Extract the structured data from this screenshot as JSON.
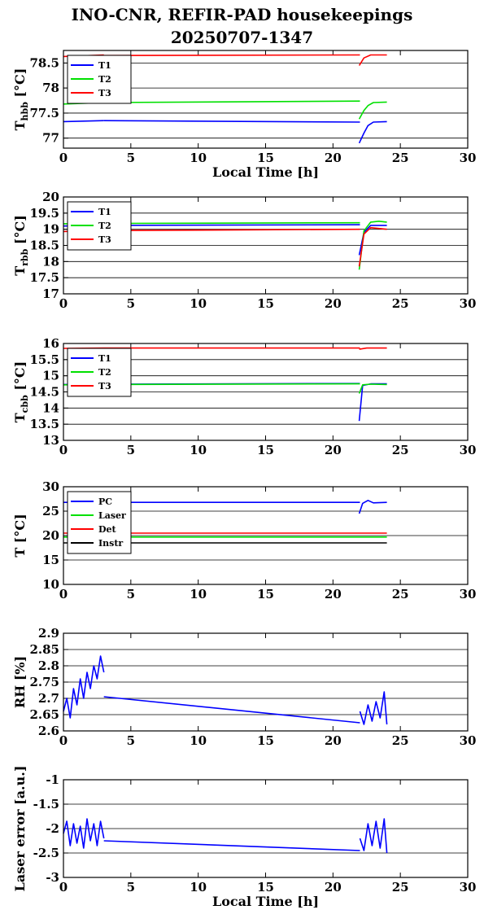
{
  "header": {
    "title_line1": "INO-CNR, REFIR-PAD housekeepings",
    "title_line2": "20250707-1347"
  },
  "colors": {
    "blue": "#0000ff",
    "green": "#00e000",
    "red": "#ff0000",
    "black": "#000000"
  },
  "chart_data": [
    {
      "type": "line",
      "ylabel_main": "T",
      "ylabel_sub": "hbb",
      "ylabel_unit": " [°C]",
      "xlabel": "Local Time [h]",
      "xlim": [
        0,
        30
      ],
      "ylim": [
        76.8,
        78.75
      ],
      "xticks": [
        "0",
        "5",
        "10",
        "15",
        "20",
        "25",
        "30"
      ],
      "yticks": [
        {
          "v": 77,
          "t": "77"
        },
        {
          "v": 77.5,
          "t": "77.5"
        },
        {
          "v": 78,
          "t": "78"
        },
        {
          "v": 78.5,
          "t": "78.5"
        }
      ],
      "grid": true,
      "legend_position": "top-left",
      "series": [
        {
          "name": "T1",
          "color": "#0000ff",
          "segments": [
            [
              [
                0,
                77.33
              ],
              [
                3,
                77.35
              ]
            ],
            [
              [
                3,
                77.35
              ],
              [
                22,
                77.32
              ]
            ],
            [
              [
                21.95,
                76.9
              ],
              [
                22.3,
                77.1
              ],
              [
                22.6,
                77.25
              ],
              [
                23,
                77.32
              ],
              [
                24,
                77.33
              ]
            ]
          ]
        },
        {
          "name": "T2",
          "color": "#00e000",
          "segments": [
            [
              [
                0,
                77.68
              ],
              [
                3,
                77.71
              ]
            ],
            [
              [
                3,
                77.71
              ],
              [
                22,
                77.74
              ]
            ],
            [
              [
                21.95,
                77.38
              ],
              [
                22.3,
                77.55
              ],
              [
                22.6,
                77.65
              ],
              [
                23,
                77.71
              ],
              [
                24,
                77.72
              ]
            ]
          ]
        },
        {
          "name": "T3",
          "color": "#ff0000",
          "segments": [
            [
              [
                0,
                78.63
              ],
              [
                3,
                78.66
              ]
            ],
            [
              [
                3,
                78.65
              ],
              [
                22,
                78.66
              ]
            ],
            [
              [
                21.95,
                78.45
              ],
              [
                22.3,
                78.6
              ],
              [
                22.8,
                78.66
              ],
              [
                24,
                78.66
              ]
            ]
          ]
        }
      ]
    },
    {
      "type": "line",
      "ylabel_main": "T",
      "ylabel_sub": "rbb",
      "ylabel_unit": " [°C]",
      "xlabel": "",
      "xlim": [
        0,
        30
      ],
      "ylim": [
        17,
        20
      ],
      "xticks": [
        "0",
        "5",
        "10",
        "15",
        "20",
        "25",
        "30"
      ],
      "yticks": [
        {
          "v": 17,
          "t": "17"
        },
        {
          "v": 17.5,
          "t": "17.5"
        },
        {
          "v": 18,
          "t": "18"
        },
        {
          "v": 18.5,
          "t": "18.5"
        },
        {
          "v": 19,
          "t": "19"
        },
        {
          "v": 19.5,
          "t": "19.5"
        },
        {
          "v": 20,
          "t": "20"
        }
      ],
      "grid": true,
      "legend_position": "top-left",
      "series": [
        {
          "name": "T1",
          "color": "#0000ff",
          "segments": [
            [
              [
                0,
                19.1
              ],
              [
                3,
                19.12
              ],
              [
                22,
                19.14
              ]
            ],
            [
              [
                21.95,
                18.2
              ],
              [
                22.3,
                18.9
              ],
              [
                22.8,
                19.12
              ],
              [
                24,
                19.12
              ]
            ]
          ]
        },
        {
          "name": "T2",
          "color": "#00e000",
          "segments": [
            [
              [
                0,
                19.17
              ],
              [
                3,
                19.18
              ],
              [
                22,
                19.2
              ]
            ],
            [
              [
                21.95,
                17.75
              ],
              [
                22.3,
                18.95
              ],
              [
                22.8,
                19.22
              ],
              [
                23.4,
                19.25
              ],
              [
                24,
                19.22
              ]
            ]
          ]
        },
        {
          "name": "T3",
          "color": "#ff0000",
          "segments": [
            [
              [
                0,
                18.93
              ],
              [
                3,
                18.96
              ],
              [
                22,
                19.0
              ]
            ],
            [
              [
                21.95,
                17.85
              ],
              [
                22.3,
                18.85
              ],
              [
                22.8,
                19.05
              ],
              [
                24,
                19.0
              ]
            ]
          ]
        }
      ]
    },
    {
      "type": "line",
      "ylabel_main": "T",
      "ylabel_sub": "cbb",
      "ylabel_unit": " [°C]",
      "xlabel": "",
      "xlim": [
        0,
        30
      ],
      "ylim": [
        13,
        16
      ],
      "xticks": [
        "0",
        "5",
        "10",
        "15",
        "20",
        "25",
        "30"
      ],
      "yticks": [
        {
          "v": 13,
          "t": "13"
        },
        {
          "v": 13.5,
          "t": "13.5"
        },
        {
          "v": 14,
          "t": "14"
        },
        {
          "v": 14.5,
          "t": "14.5"
        },
        {
          "v": 15,
          "t": "15"
        },
        {
          "v": 15.5,
          "t": "15.5"
        },
        {
          "v": 16,
          "t": "16"
        }
      ],
      "grid": true,
      "legend_position": "top-left",
      "series": [
        {
          "name": "T1",
          "color": "#0000ff",
          "segments": [
            [
              [
                0,
                14.73
              ],
              [
                3,
                14.74
              ],
              [
                22,
                14.76
              ]
            ],
            [
              [
                21.95,
                13.6
              ],
              [
                22.2,
                14.7
              ],
              [
                22.8,
                14.75
              ],
              [
                24,
                14.75
              ]
            ]
          ]
        },
        {
          "name": "T2",
          "color": "#00e000",
          "segments": [
            [
              [
                0,
                14.72
              ],
              [
                3,
                14.73
              ],
              [
                22,
                14.75
              ]
            ],
            [
              [
                21.95,
                14.45
              ],
              [
                22.2,
                14.72
              ],
              [
                22.8,
                14.74
              ],
              [
                24,
                14.73
              ]
            ]
          ]
        },
        {
          "name": "T3",
          "color": "#ff0000",
          "segments": [
            [
              [
                0,
                15.85
              ],
              [
                3,
                15.86
              ],
              [
                22,
                15.86
              ]
            ],
            [
              [
                21.95,
                15.82
              ],
              [
                22.5,
                15.86
              ],
              [
                24,
                15.86
              ]
            ]
          ]
        }
      ]
    },
    {
      "type": "line",
      "ylabel_main": "T",
      "ylabel_sub": "",
      "ylabel_unit": " [°C]",
      "xlabel": "",
      "xlim": [
        0,
        30
      ],
      "ylim": [
        10,
        30
      ],
      "xticks": [
        "0",
        "5",
        "10",
        "15",
        "20",
        "25",
        "30"
      ],
      "yticks": [
        {
          "v": 10,
          "t": "10"
        },
        {
          "v": 15,
          "t": "15"
        },
        {
          "v": 20,
          "t": "20"
        },
        {
          "v": 25,
          "t": "25"
        },
        {
          "v": 30,
          "t": "30"
        }
      ],
      "grid": true,
      "legend_position": "top-left",
      "series": [
        {
          "name": "PC",
          "color": "#0000ff",
          "segments": [
            [
              [
                0,
                26.8
              ],
              [
                3,
                26.8
              ],
              [
                22,
                26.8
              ]
            ],
            [
              [
                21.95,
                24.5
              ],
              [
                22.2,
                26.6
              ],
              [
                22.6,
                27.2
              ],
              [
                23,
                26.7
              ],
              [
                24,
                26.8
              ]
            ]
          ]
        },
        {
          "name": "Laser",
          "color": "#00e000",
          "segments": [
            [
              [
                0,
                19.7
              ],
              [
                24,
                19.7
              ]
            ]
          ]
        },
        {
          "name": "Det",
          "color": "#ff0000",
          "segments": [
            [
              [
                0,
                20.5
              ],
              [
                24,
                20.5
              ]
            ]
          ]
        },
        {
          "name": "Instr",
          "color": "#000000",
          "segments": [
            [
              [
                0,
                18.5
              ],
              [
                24,
                18.5
              ]
            ]
          ]
        }
      ]
    },
    {
      "type": "line",
      "ylabel_main": "RH [%]",
      "ylabel_sub": "",
      "ylabel_unit": "",
      "xlabel": "",
      "xlim": [
        0,
        30
      ],
      "ylim": [
        2.6,
        2.9
      ],
      "xticks": [
        "0",
        "5",
        "10",
        "15",
        "20",
        "25",
        "30"
      ],
      "yticks": [
        {
          "v": 2.6,
          "t": "2.6"
        },
        {
          "v": 2.65,
          "t": "2.65"
        },
        {
          "v": 2.7,
          "t": "2.7"
        },
        {
          "v": 2.75,
          "t": "2.75"
        },
        {
          "v": 2.8,
          "t": "2.8"
        },
        {
          "v": 2.85,
          "t": "2.85"
        },
        {
          "v": 2.9,
          "t": "2.9"
        }
      ],
      "grid": true,
      "legend_position": "none",
      "series": [
        {
          "name": "",
          "color": "#0000ff",
          "segments": [
            [
              [
                0,
                2.66
              ],
              [
                0.25,
                2.7
              ],
              [
                0.5,
                2.64
              ],
              [
                0.75,
                2.73
              ],
              [
                1,
                2.68
              ],
              [
                1.25,
                2.76
              ],
              [
                1.5,
                2.7
              ],
              [
                1.75,
                2.78
              ],
              [
                2,
                2.73
              ],
              [
                2.25,
                2.8
              ],
              [
                2.5,
                2.76
              ],
              [
                2.75,
                2.83
              ],
              [
                3,
                2.78
              ]
            ],
            [
              [
                3,
                2.705
              ],
              [
                22,
                2.625
              ]
            ],
            [
              [
                22,
                2.66
              ],
              [
                22.3,
                2.62
              ],
              [
                22.6,
                2.68
              ],
              [
                22.9,
                2.63
              ],
              [
                23.2,
                2.69
              ],
              [
                23.5,
                2.64
              ],
              [
                23.8,
                2.72
              ],
              [
                24,
                2.62
              ]
            ]
          ]
        }
      ]
    },
    {
      "type": "line",
      "ylabel_main": "Laser error [a.u.]",
      "ylabel_sub": "",
      "ylabel_unit": "",
      "xlabel": "Local Time [h]",
      "xlim": [
        0,
        30
      ],
      "ylim": [
        -3,
        -1
      ],
      "xticks": [
        "0",
        "5",
        "10",
        "15",
        "20",
        "25",
        "30"
      ],
      "yticks": [
        {
          "v": -3,
          "t": "-3"
        },
        {
          "v": -2.5,
          "t": "-2.5"
        },
        {
          "v": -2,
          "t": "-2"
        },
        {
          "v": -1.5,
          "t": "-1.5"
        },
        {
          "v": -1,
          "t": "-1"
        }
      ],
      "grid": true,
      "legend_position": "none",
      "series": [
        {
          "name": "",
          "color": "#0000ff",
          "segments": [
            [
              [
                0,
                -2.1
              ],
              [
                0.25,
                -1.85
              ],
              [
                0.5,
                -2.35
              ],
              [
                0.75,
                -1.9
              ],
              [
                1,
                -2.3
              ],
              [
                1.25,
                -1.95
              ],
              [
                1.5,
                -2.4
              ],
              [
                1.75,
                -1.8
              ],
              [
                2,
                -2.25
              ],
              [
                2.25,
                -1.9
              ],
              [
                2.5,
                -2.35
              ],
              [
                2.75,
                -1.85
              ],
              [
                3,
                -2.2
              ]
            ],
            [
              [
                3,
                -2.25
              ],
              [
                22,
                -2.45
              ]
            ],
            [
              [
                22,
                -2.2
              ],
              [
                22.3,
                -2.45
              ],
              [
                22.6,
                -1.9
              ],
              [
                22.9,
                -2.35
              ],
              [
                23.2,
                -1.85
              ],
              [
                23.5,
                -2.4
              ],
              [
                23.8,
                -1.8
              ],
              [
                24,
                -2.5
              ]
            ]
          ]
        }
      ]
    }
  ]
}
